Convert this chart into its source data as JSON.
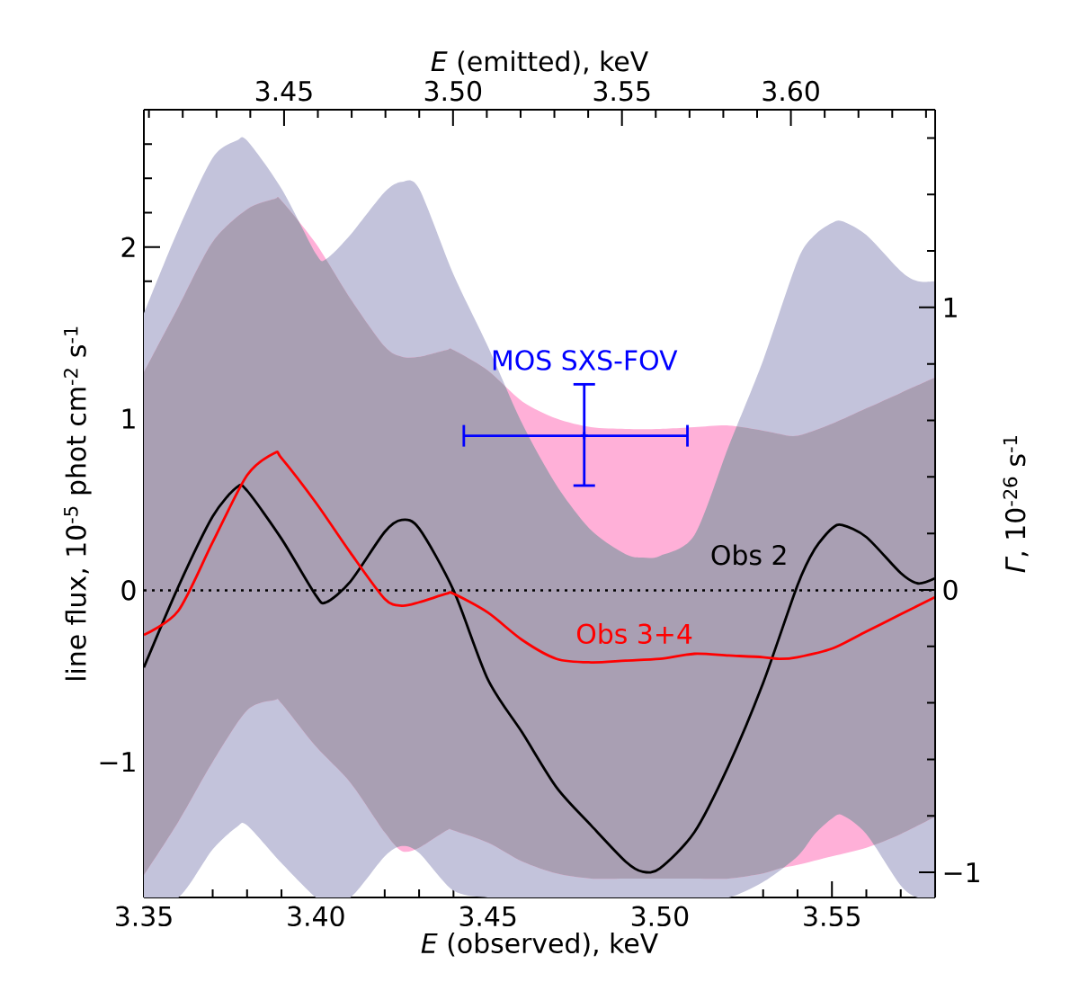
{
  "chart_data": {
    "type": "line",
    "xlabel": "*E* (observed), keV",
    "ylabel": "line flux, 10$^{-5}$ phot cm$^{-2}$ s$^{-1}$",
    "x2label": "*E* (emitted), keV",
    "y2label": "*Γ*, 10$^{-26}$ s$^{-1}$",
    "xlim": [
      3.35,
      3.58
    ],
    "ylim": [
      -1.79,
      2.8
    ],
    "x2lim": [
      3.4085,
      3.6427
    ],
    "y2lim": [
      -1.089,
      1.7
    ],
    "xticks": [
      {
        "value": 3.35,
        "label": "3.35"
      },
      {
        "value": 3.4,
        "label": "3.40"
      },
      {
        "value": 3.45,
        "label": "3.45"
      },
      {
        "value": 3.5,
        "label": "3.50"
      },
      {
        "value": 3.55,
        "label": "3.55"
      }
    ],
    "yticks": [
      {
        "value": -1,
        "label": "−1"
      },
      0,
      1,
      2
    ],
    "x2ticks": [
      {
        "value": 3.45,
        "label": "3.45"
      },
      {
        "value": 3.5,
        "label": "3.50"
      },
      {
        "value": 3.55,
        "label": "3.55"
      },
      {
        "value": 3.6,
        "label": "3.60"
      }
    ],
    "y2ticks": [
      {
        "value": -1,
        "label": "−1"
      },
      0,
      1
    ],
    "line_style": "solid",
    "ref_lines": [
      {
        "axis": "y",
        "value": 0,
        "line_style": "dotted"
      }
    ],
    "series": [
      {
        "name": "Obs 2",
        "color": "#000000",
        "x": [
          3.35,
          3.36,
          3.37,
          3.377,
          3.38,
          3.39,
          3.4,
          3.403,
          3.41,
          3.42,
          3.425,
          3.43,
          3.44,
          3.45,
          3.46,
          3.47,
          3.48,
          3.49,
          3.495,
          3.5,
          3.51,
          3.52,
          3.53,
          3.54,
          3.545,
          3.55,
          3.553,
          3.56,
          3.57,
          3.575,
          3.58
        ],
        "values": [
          -0.45,
          0.02,
          0.43,
          0.6,
          0.58,
          0.3,
          -0.03,
          -0.07,
          0.05,
          0.34,
          0.41,
          0.36,
          0.0,
          -0.52,
          -0.83,
          -1.15,
          -1.37,
          -1.58,
          -1.64,
          -1.62,
          -1.41,
          -1.02,
          -0.54,
          0.03,
          0.24,
          0.36,
          0.38,
          0.31,
          0.1,
          0.04,
          0.07
        ],
        "lower": [
          -1.79,
          -1.79,
          -1.51,
          -1.38,
          -1.37,
          -1.59,
          -1.79,
          -1.79,
          -1.79,
          -1.55,
          -1.49,
          -1.53,
          -1.75,
          -1.79,
          -1.79,
          -1.79,
          -1.79,
          -1.79,
          -1.79,
          -1.79,
          -1.79,
          -1.79,
          -1.7,
          -1.55,
          -1.42,
          -1.33,
          -1.31,
          -1.42,
          -1.72,
          -1.79,
          -1.79
        ],
        "upper": [
          1.61,
          2.1,
          2.52,
          2.62,
          2.62,
          2.34,
          1.96,
          1.93,
          2.07,
          2.32,
          2.38,
          2.34,
          1.84,
          1.42,
          0.97,
          0.61,
          0.35,
          0.21,
          0.19,
          0.2,
          0.32,
          0.84,
          1.34,
          1.92,
          2.07,
          2.14,
          2.15,
          2.07,
          1.86,
          1.8,
          1.8
        ]
      },
      {
        "name": "Obs 3+4",
        "color": "#ff0000",
        "x": [
          3.35,
          3.36,
          3.37,
          3.38,
          3.388,
          3.39,
          3.4,
          3.41,
          3.42,
          3.425,
          3.43,
          3.438,
          3.44,
          3.45,
          3.46,
          3.47,
          3.48,
          3.49,
          3.5,
          3.51,
          3.52,
          3.53,
          3.535,
          3.54,
          3.55,
          3.56,
          3.57,
          3.58
        ],
        "values": [
          -0.26,
          -0.12,
          0.28,
          0.67,
          0.8,
          0.77,
          0.51,
          0.22,
          -0.05,
          -0.09,
          -0.07,
          -0.02,
          -0.02,
          -0.13,
          -0.29,
          -0.4,
          -0.42,
          -0.41,
          -0.4,
          -0.37,
          -0.38,
          -0.39,
          -0.4,
          -0.39,
          -0.34,
          -0.24,
          -0.14,
          -0.04
        ],
        "lower": [
          -1.66,
          -1.35,
          -1.0,
          -0.7,
          -0.64,
          -0.66,
          -0.91,
          -1.12,
          -1.41,
          -1.52,
          -1.5,
          -1.4,
          -1.4,
          -1.47,
          -1.58,
          -1.65,
          -1.68,
          -1.68,
          -1.68,
          -1.68,
          -1.68,
          -1.65,
          -1.62,
          -1.6,
          -1.55,
          -1.5,
          -1.42,
          -1.32
        ],
        "upper": [
          1.27,
          1.65,
          2.03,
          2.22,
          2.28,
          2.27,
          2.02,
          1.7,
          1.42,
          1.36,
          1.36,
          1.4,
          1.4,
          1.28,
          1.1,
          1.0,
          0.95,
          0.94,
          0.94,
          0.95,
          0.96,
          0.93,
          0.91,
          0.9,
          0.97,
          1.06,
          1.15,
          1.24
        ]
      },
      {
        "name": "MOS SXS-FOV",
        "type": "scatter",
        "color": "#0000ff",
        "x": [
          3.478
        ],
        "values": [
          0.9
        ],
        "errors": [
          [
            0.61,
            1.2
          ]
        ],
        "xerrors": [
          [
            3.443,
            3.508
          ]
        ]
      }
    ]
  }
}
